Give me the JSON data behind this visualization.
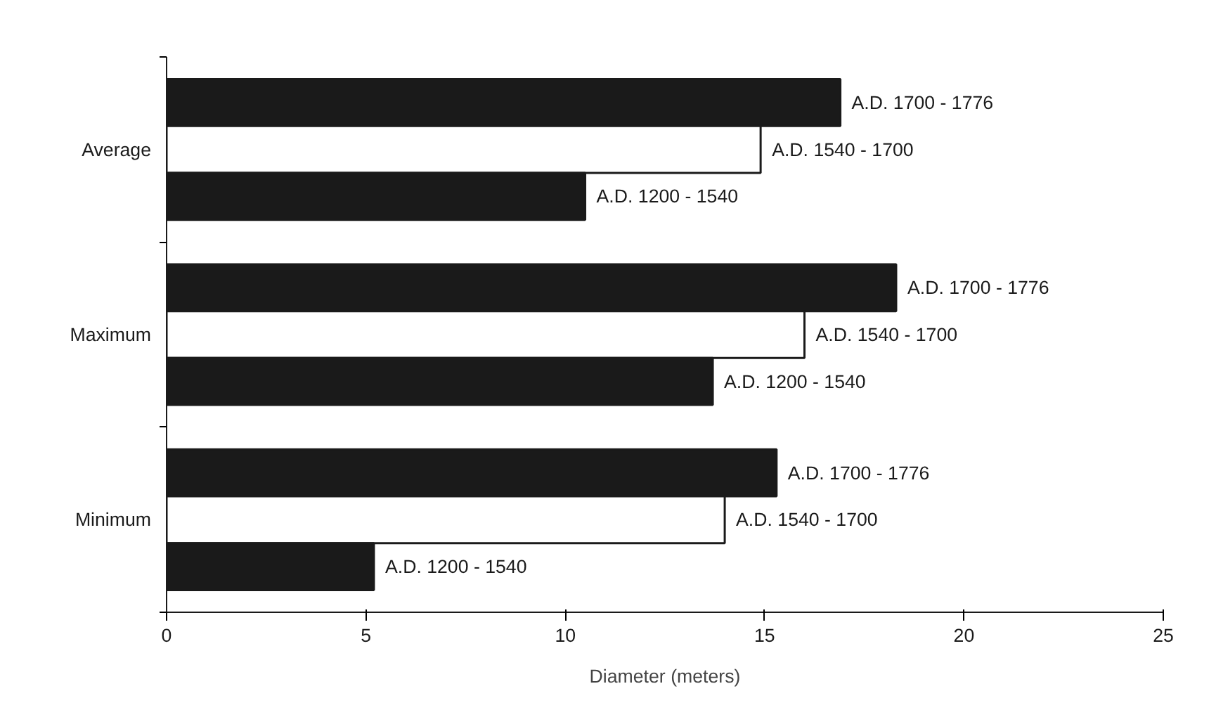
{
  "chart_data": {
    "type": "bar",
    "orientation": "horizontal",
    "categories": [
      "Average",
      "Maximum",
      "Minimum"
    ],
    "xlabel": "Diameter (meters)",
    "xlim": [
      0,
      25
    ],
    "xticks": [
      0,
      5,
      10,
      15,
      20,
      25
    ],
    "grid": false,
    "series": [
      {
        "name": "A.D. 1700 - 1776",
        "color": "#1a1a1a",
        "values": [
          16.9,
          18.3,
          15.3
        ]
      },
      {
        "name": "A.D. 1540 - 1700",
        "color": "#ffffff",
        "values": [
          14.9,
          16.0,
          14.0
        ]
      },
      {
        "name": "A.D. 1200 - 1540",
        "color": "#1a1a1a",
        "values": [
          10.5,
          13.7,
          5.2
        ]
      }
    ]
  }
}
